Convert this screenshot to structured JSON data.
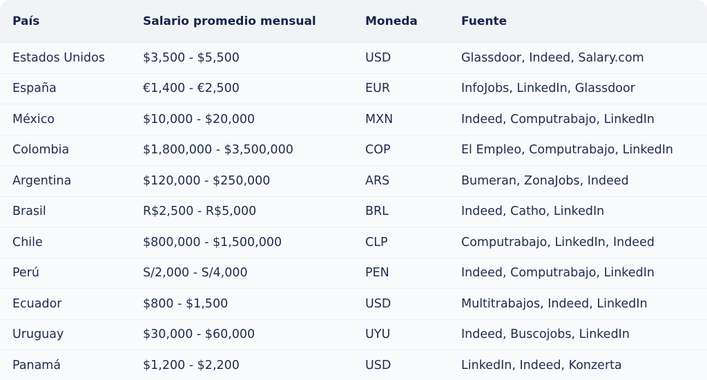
{
  "table": {
    "headers": [
      "País",
      "Salario promedio mensual",
      "Moneda",
      "Fuente"
    ],
    "rows": [
      [
        "Estados Unidos",
        "$3,500 - $5,500",
        "USD",
        "Glassdoor, Indeed, Salary.com"
      ],
      [
        "España",
        "€1,400 - €2,500",
        "EUR",
        "InfoJobs, LinkedIn, Glassdoor"
      ],
      [
        "México",
        "$10,000 - $20,000",
        "MXN",
        "Indeed, Computrabajo, LinkedIn"
      ],
      [
        "Colombia",
        "$1,800,000 - $3,500,000",
        "COP",
        "El Empleo, Computrabajo, LinkedIn"
      ],
      [
        "Argentina",
        "$120,000 - $250,000",
        "ARS",
        "Bumeran, ZonaJobs, Indeed"
      ],
      [
        "Brasil",
        "R$2,500 - R$5,000",
        "BRL",
        "Indeed, Catho, LinkedIn"
      ],
      [
        "Chile",
        "$800,000 - $1,500,000",
        "CLP",
        "Computrabajo, LinkedIn, Indeed"
      ],
      [
        "Perú",
        "S/2,000 - S/4,000",
        "PEN",
        "Indeed, Computrabajo, LinkedIn"
      ],
      [
        "Ecuador",
        "$800 - $1,500",
        "USD",
        "Multitrabajos, Indeed, LinkedIn"
      ],
      [
        "Uruguay",
        "$30,000 - $60,000",
        "UYU",
        "Indeed, Buscojobs, LinkedIn"
      ],
      [
        "Panamá",
        "$1,200 - $2,200",
        "USD",
        "LinkedIn, Indeed, Konzerta"
      ]
    ]
  },
  "colors": {
    "header_bg": "#f2f3f7",
    "row_bg": "#f9fafc",
    "text": "#1f2b4d"
  }
}
